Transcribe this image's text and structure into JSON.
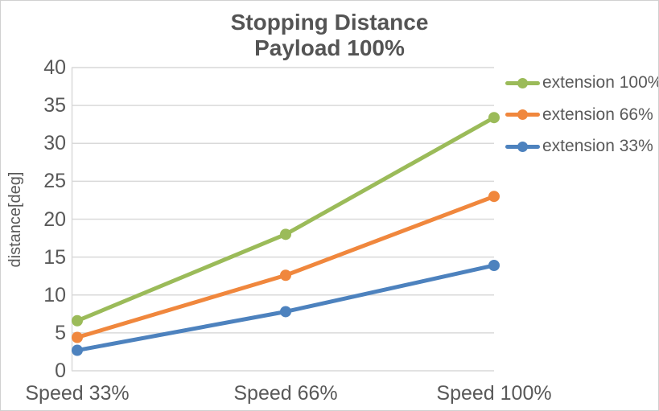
{
  "chart_data": {
    "type": "line",
    "title_line1": "Stopping Distance",
    "title_line2": "Payload 100%",
    "ylabel": "distance[deg]",
    "xlabel": "",
    "categories": [
      "Speed 33%",
      "Speed 66%",
      "Speed 100%"
    ],
    "series": [
      {
        "name": "extension 100%",
        "color": "#9BBB59",
        "values": [
          6.6,
          18.0,
          33.4
        ]
      },
      {
        "name": "extension 66%",
        "color": "#F0873D",
        "values": [
          4.4,
          12.6,
          23.0
        ]
      },
      {
        "name": "extension 33%",
        "color": "#4D82BE",
        "values": [
          2.7,
          7.8,
          13.9
        ]
      }
    ],
    "ylim": [
      0,
      40
    ],
    "yticks": [
      0,
      5,
      10,
      15,
      20,
      25,
      30,
      35,
      40
    ],
    "grid": true,
    "legend_position": "right",
    "marker": "circle",
    "colors": {
      "text": "#595959",
      "gridline": "#D9D9D9",
      "axisline": "#D9D9D9"
    }
  }
}
